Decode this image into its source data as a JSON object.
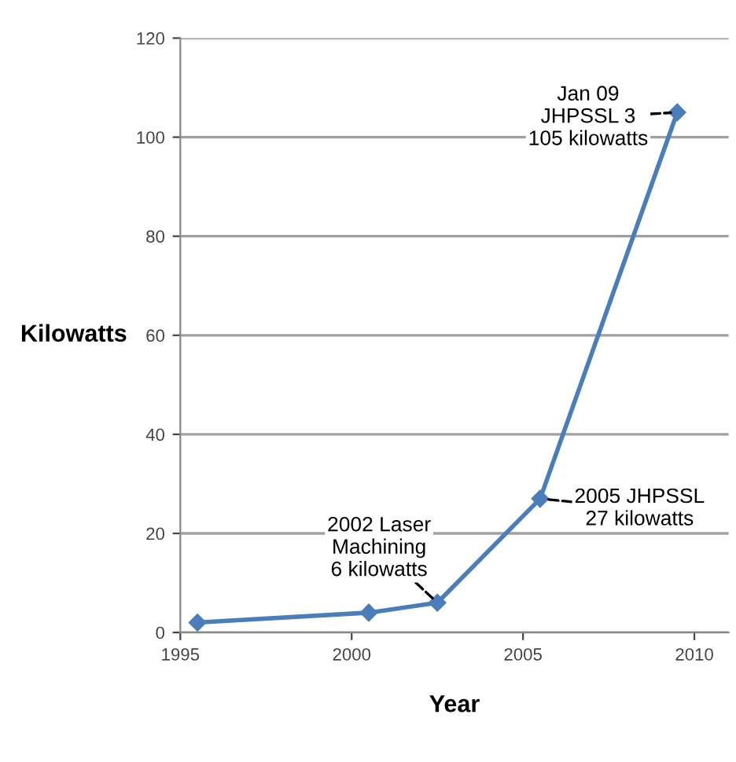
{
  "chart_data": {
    "type": "line",
    "xlabel": "Year",
    "ylabel": "Kilowatts",
    "x": [
      1995.5,
      2000.5,
      2002.5,
      2005.5,
      2009.5
    ],
    "series": [
      {
        "color": "#4a7ebb",
        "values": [
          2,
          4,
          6,
          27,
          105
        ]
      }
    ],
    "xlim": [
      1995,
      2011
    ],
    "xticks": [
      1995,
      2000,
      2005,
      2010
    ],
    "ylim": [
      0,
      120
    ],
    "yticks": [
      0,
      20,
      40,
      60,
      80,
      100,
      120
    ],
    "grid": "y",
    "marker": "diamond",
    "line_style": "solid",
    "legend": false,
    "annotations": [
      {
        "text": "2002 Laser\nMachining\n6 kilowatts",
        "x": 2002.5,
        "y": 6
      },
      {
        "text": "2005 JHPSSL\n27 kilowatts",
        "x": 2005.5,
        "y": 27
      },
      {
        "text": "Jan 09\nJHPSSL 3\n105 kilowatts",
        "x": 2009.5,
        "y": 105
      }
    ]
  }
}
